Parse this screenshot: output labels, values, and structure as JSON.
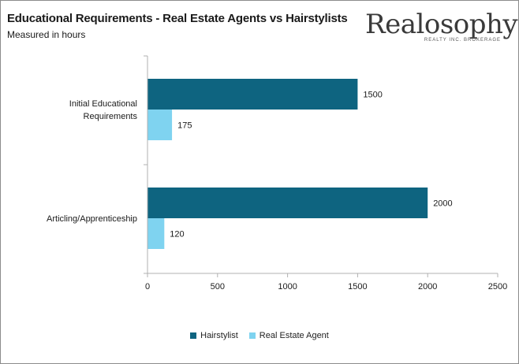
{
  "title": "Educational Requirements - Real Estate Agents vs Hairstylists",
  "subtitle": "Measured in hours",
  "brand": {
    "name": "Realosophy",
    "tagline": "REALTY INC. BROKERAGE"
  },
  "colors": {
    "hairstylist": "#0e6480",
    "agent": "#7fd3f0",
    "axis": "#b0b0b0",
    "text": "#1a1a1a"
  },
  "chart_data": {
    "type": "bar",
    "orientation": "horizontal",
    "categories": [
      {
        "lines": [
          "Initial Educational",
          "Requirements"
        ]
      },
      {
        "lines": [
          "Articling/Apprenticeship"
        ]
      }
    ],
    "series": [
      {
        "name": "Hairstylist",
        "values": [
          1500,
          2000
        ],
        "data_labels": [
          "1500",
          "2000"
        ]
      },
      {
        "name": "Real Estate  Agent",
        "values": [
          175,
          120
        ],
        "data_labels": [
          "175",
          "120"
        ]
      }
    ],
    "xlim": [
      0,
      2500
    ],
    "xticks": [
      "0",
      "500",
      "1000",
      "1500",
      "2000",
      "2500"
    ],
    "grid": false,
    "legend_position": "bottom"
  }
}
